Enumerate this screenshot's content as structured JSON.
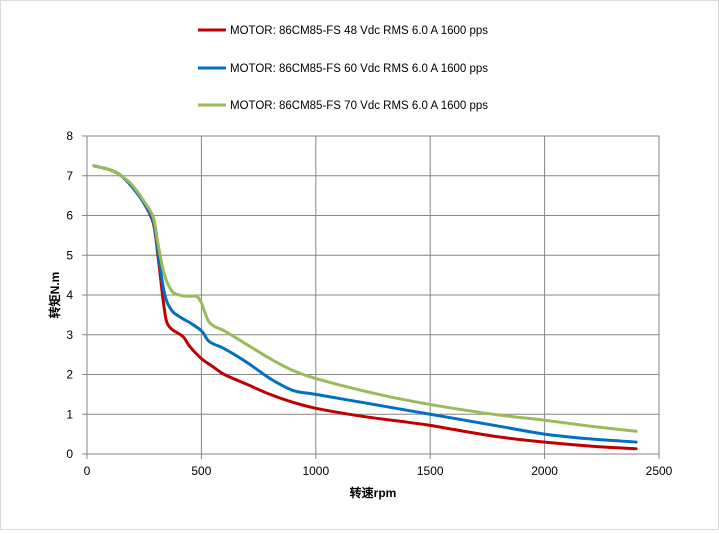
{
  "chart_data": {
    "type": "line",
    "title": "",
    "xlabel": "转速rpm",
    "ylabel": "转矩N.m",
    "xlim": [
      0,
      2500
    ],
    "ylim": [
      0,
      8
    ],
    "xticks": [
      0,
      500,
      1000,
      1500,
      2000,
      2500
    ],
    "yticks": [
      0,
      1,
      2,
      3,
      4,
      5,
      6,
      7,
      8
    ],
    "grid": true,
    "legend_position": "top",
    "series": [
      {
        "name": "MOTOR:  86CM85-FS 48 Vdc  RMS  6.0 A  1600 pps",
        "color": "#c00000",
        "x": [
          30,
          100,
          150,
          200,
          250,
          290,
          310,
          330,
          345,
          360,
          380,
          420,
          450,
          500,
          550,
          600,
          700,
          800,
          900,
          1000,
          1200,
          1400,
          1500,
          1600,
          1800,
          2000,
          2200,
          2400
        ],
        "y": [
          7.25,
          7.15,
          7.0,
          6.7,
          6.3,
          5.8,
          5.0,
          4.0,
          3.4,
          3.2,
          3.1,
          2.95,
          2.7,
          2.4,
          2.2,
          2.0,
          1.75,
          1.5,
          1.3,
          1.15,
          0.95,
          0.8,
          0.72,
          0.62,
          0.43,
          0.3,
          0.2,
          0.13
        ]
      },
      {
        "name": "MOTOR:  86CM85-FS 60 Vdc  RMS  6.0 A  1600 pps",
        "color": "#0070c0",
        "x": [
          30,
          100,
          150,
          200,
          250,
          290,
          310,
          330,
          345,
          360,
          380,
          420,
          450,
          500,
          530,
          560,
          600,
          700,
          800,
          900,
          1000,
          1200,
          1400,
          1600,
          1800,
          2000,
          2200,
          2400
        ],
        "y": [
          7.25,
          7.15,
          7.0,
          6.7,
          6.3,
          5.85,
          5.1,
          4.3,
          3.9,
          3.7,
          3.55,
          3.4,
          3.3,
          3.1,
          2.85,
          2.75,
          2.65,
          2.3,
          1.9,
          1.6,
          1.5,
          1.3,
          1.1,
          0.9,
          0.7,
          0.5,
          0.38,
          0.3
        ]
      },
      {
        "name": "MOTOR:  86CM85-FS 70 Vdc  RMS  6.0 A  1600 pps",
        "color": "#9bbb59",
        "x": [
          30,
          100,
          150,
          200,
          250,
          290,
          310,
          330,
          345,
          360,
          380,
          420,
          450,
          480,
          500,
          530,
          560,
          600,
          700,
          800,
          900,
          1000,
          1200,
          1400,
          1600,
          1800,
          2000,
          2200,
          2400
        ],
        "y": [
          7.25,
          7.15,
          7.0,
          6.75,
          6.35,
          5.95,
          5.3,
          4.7,
          4.4,
          4.2,
          4.05,
          3.98,
          3.97,
          3.96,
          3.8,
          3.35,
          3.2,
          3.1,
          2.75,
          2.4,
          2.1,
          1.9,
          1.6,
          1.35,
          1.15,
          0.98,
          0.85,
          0.7,
          0.57
        ]
      }
    ]
  }
}
